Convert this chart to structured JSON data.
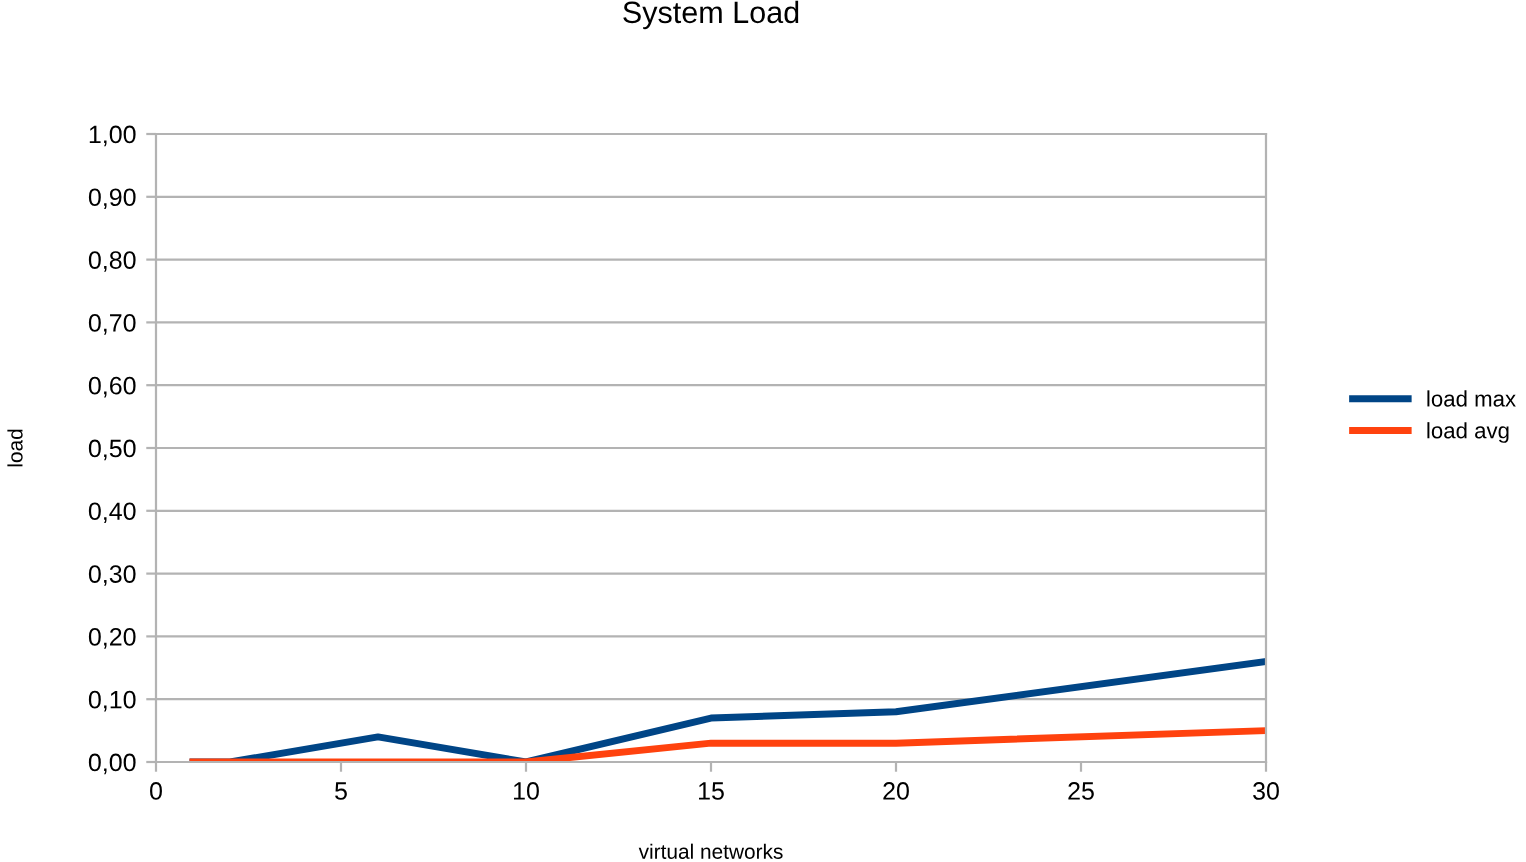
{
  "chart_data": {
    "type": "line",
    "title": "System Load",
    "xlabel": "virtual networks",
    "ylabel": "load",
    "xlim": [
      0,
      30
    ],
    "xticks": [
      0,
      5,
      10,
      15,
      20,
      25,
      30
    ],
    "ylim": [
      0,
      1
    ],
    "yticks": [
      {
        "value": 0,
        "label": "0,00"
      },
      {
        "value": 0.1,
        "label": "0,10"
      },
      {
        "value": 0.2,
        "label": "0,20"
      },
      {
        "value": 0.3,
        "label": "0,30"
      },
      {
        "value": 0.4,
        "label": "0,40"
      },
      {
        "value": 0.5,
        "label": "0,50"
      },
      {
        "value": 0.6,
        "label": "0,60"
      },
      {
        "value": 0.7,
        "label": "0,70"
      },
      {
        "value": 0.8,
        "label": "0,80"
      },
      {
        "value": 0.9,
        "label": "0,90"
      },
      {
        "value": 1,
        "label": "1,00"
      }
    ],
    "x": [
      1,
      2,
      6,
      10,
      15,
      20,
      30
    ],
    "series": [
      {
        "name": "load max",
        "color": "#004586",
        "values": [
          0,
          0,
          0.04,
          0,
          0.07,
          0.08,
          0.16
        ]
      },
      {
        "name": "load avg",
        "color": "#ff420e",
        "values": [
          0,
          0,
          0,
          0,
          0.03,
          0.03,
          0.05
        ]
      }
    ],
    "grid": "y",
    "legend": "right",
    "marker": "none",
    "line_style": "solid"
  }
}
